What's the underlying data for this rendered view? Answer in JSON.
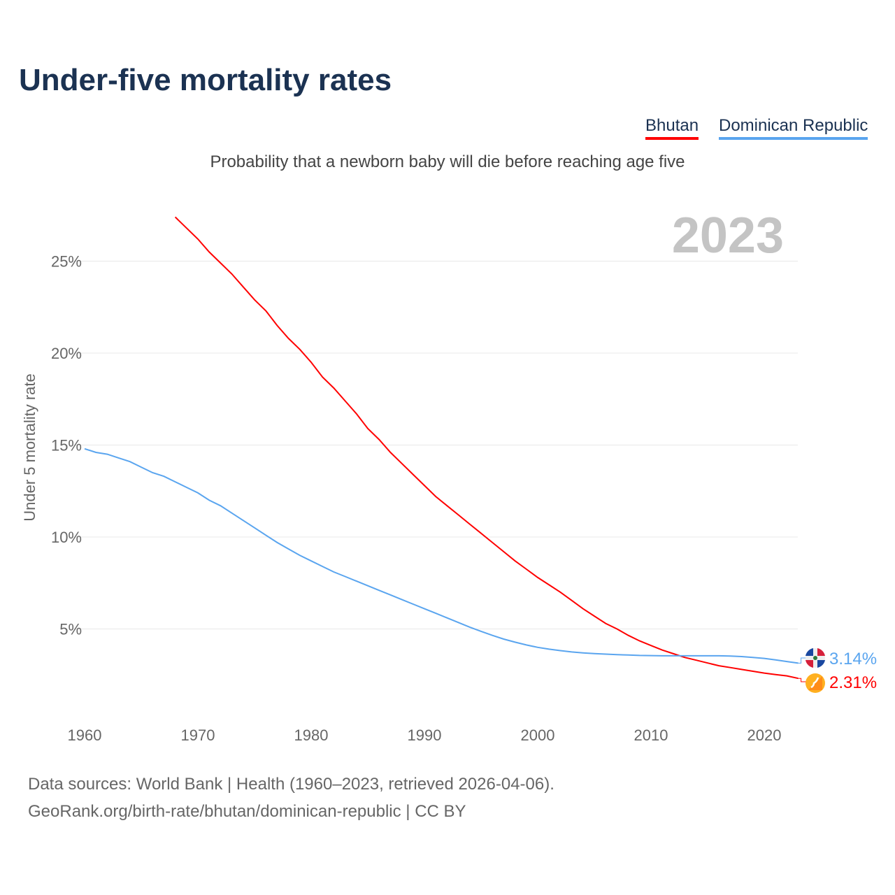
{
  "chart_data": {
    "type": "line",
    "title": "Under-five mortality rates",
    "subtitle": "Probability that a newborn baby will die before reaching age five",
    "ylabel": "Under 5 mortality rate",
    "xlabel": "",
    "ylim": [
      0,
      28
    ],
    "xlim": [
      1960,
      2023
    ],
    "yticks": [
      5,
      10,
      15,
      20,
      25
    ],
    "ytick_labels": [
      "5%",
      "10%",
      "15%",
      "20%",
      "25%"
    ],
    "xticks": [
      1960,
      1970,
      1980,
      1990,
      2000,
      2010,
      2020
    ],
    "xtick_labels": [
      "1960",
      "1970",
      "1980",
      "1990",
      "2000",
      "2010",
      "2020"
    ],
    "year_label": "2023",
    "grid": true,
    "legend_placement": "top-right",
    "series": [
      {
        "name": "Bhutan",
        "color": "#ff0000",
        "end_label": "2.31%",
        "start_year": 1968,
        "values": [
          27.4,
          26.8,
          26.2,
          25.5,
          24.9,
          24.3,
          23.6,
          22.9,
          22.3,
          21.5,
          20.8,
          20.2,
          19.5,
          18.7,
          18.1,
          17.4,
          16.7,
          15.9,
          15.3,
          14.6,
          14.0,
          13.4,
          12.8,
          12.2,
          11.7,
          11.2,
          10.7,
          10.2,
          9.7,
          9.2,
          8.7,
          8.25,
          7.8,
          7.4,
          7.0,
          6.55,
          6.1,
          5.7,
          5.3,
          5.0,
          4.65,
          4.35,
          4.1,
          3.85,
          3.65,
          3.45,
          3.3,
          3.15,
          3.0,
          2.9,
          2.8,
          2.7,
          2.6,
          2.52,
          2.45,
          2.31
        ]
      },
      {
        "name": "Dominican Republic",
        "color": "#5aa5ef",
        "end_label": "3.14%",
        "start_year": 1960,
        "values": [
          14.8,
          14.6,
          14.5,
          14.3,
          14.1,
          13.8,
          13.5,
          13.3,
          13.0,
          12.7,
          12.4,
          12.0,
          11.7,
          11.3,
          10.9,
          10.5,
          10.1,
          9.7,
          9.35,
          9.0,
          8.7,
          8.4,
          8.1,
          7.85,
          7.6,
          7.35,
          7.1,
          6.85,
          6.6,
          6.35,
          6.1,
          5.85,
          5.6,
          5.35,
          5.1,
          4.87,
          4.65,
          4.45,
          4.28,
          4.13,
          4.0,
          3.9,
          3.82,
          3.75,
          3.7,
          3.66,
          3.63,
          3.6,
          3.58,
          3.56,
          3.55,
          3.54,
          3.54,
          3.54,
          3.54,
          3.54,
          3.54,
          3.53,
          3.5,
          3.45,
          3.4,
          3.32,
          3.23,
          3.14
        ]
      }
    ]
  },
  "sources": {
    "line1": "Data sources: World Bank | Health (1960–2023, retrieved 2026-04-06).",
    "line2": "GeoRank.org/birth-rate/bhutan/dominican-republic | CC BY"
  }
}
